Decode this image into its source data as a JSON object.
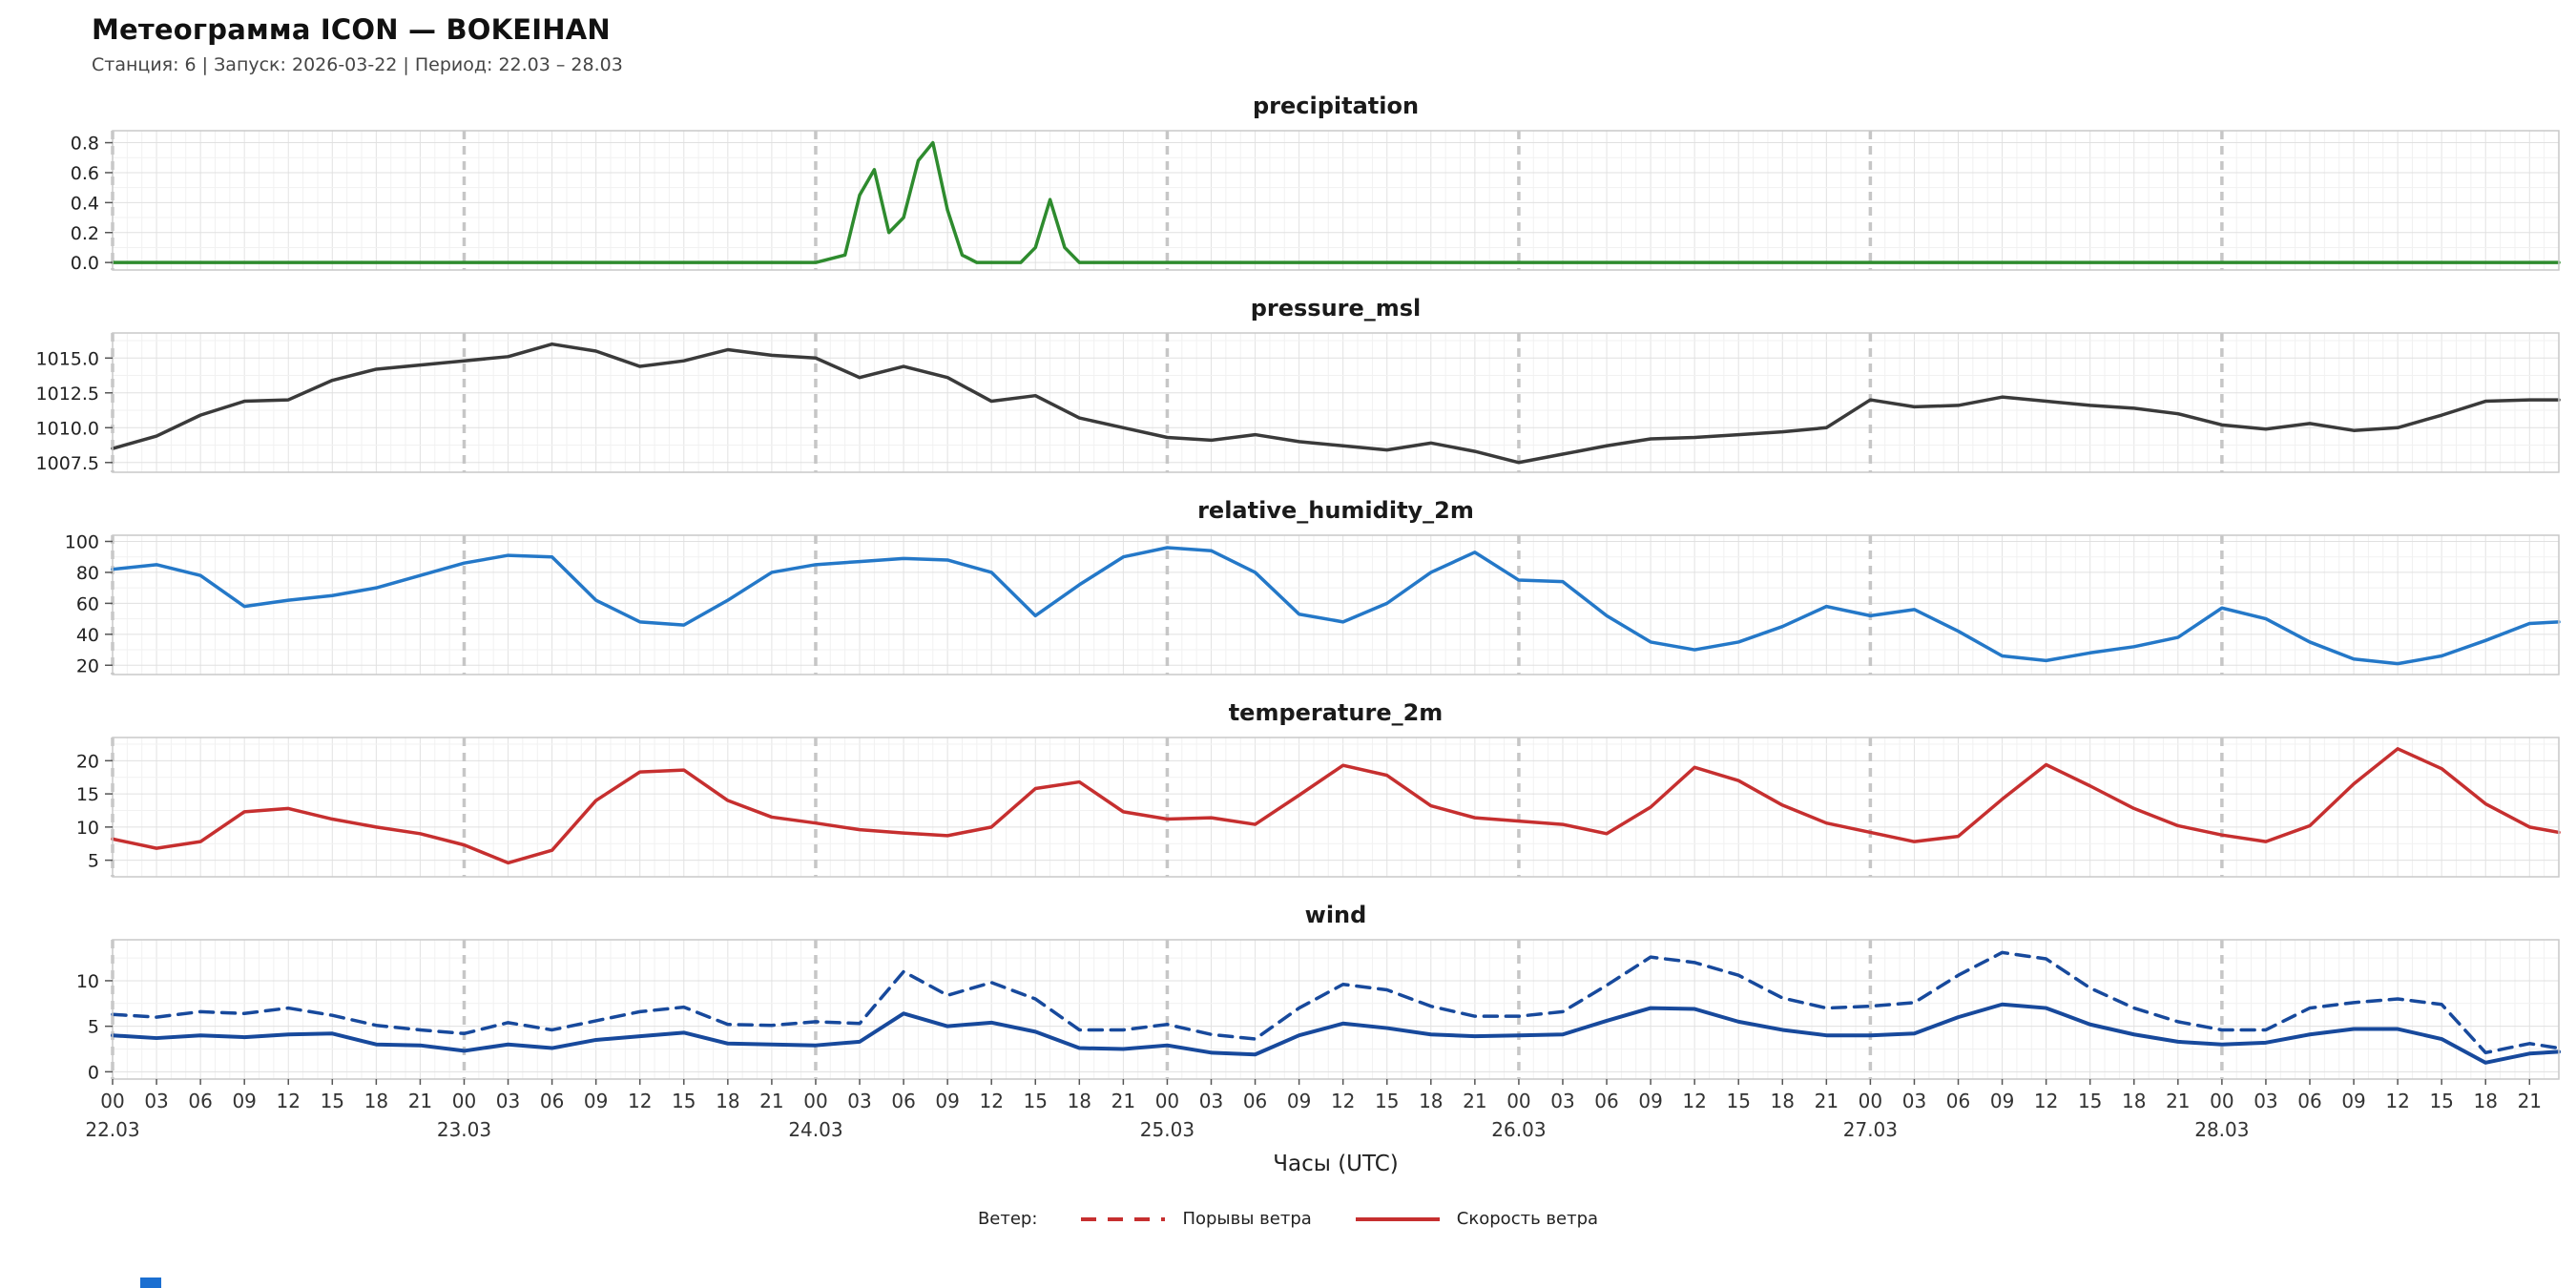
{
  "header": {
    "title": "Метеограмма ICON — BOKEIHAN",
    "subtitle": "Станция: 6 | Запуск: 2026-03-22 | Период: 22.03 – 28.03"
  },
  "x_axis": {
    "xlabel": "Часы (UTC)",
    "hour_labels": [
      "00",
      "03",
      "06",
      "09",
      "12",
      "15",
      "18",
      "21"
    ],
    "day_labels": [
      "22.03",
      "23.03",
      "24.03",
      "25.03",
      "26.03",
      "27.03",
      "28.03"
    ],
    "hour_step": 3,
    "total_hours": 167,
    "x_hours": [
      0,
      3,
      6,
      9,
      12,
      15,
      18,
      21,
      24,
      27,
      30,
      33,
      36,
      39,
      42,
      45,
      48,
      51,
      54,
      57,
      60,
      63,
      66,
      69,
      72,
      75,
      78,
      81,
      84,
      87,
      90,
      93,
      96,
      99,
      102,
      105,
      108,
      111,
      114,
      117,
      120,
      123,
      126,
      129,
      132,
      135,
      138,
      141,
      144,
      147,
      150,
      153,
      156,
      159,
      162,
      165,
      167
    ]
  },
  "chart_data": [
    {
      "type": "line",
      "title": "precipitation",
      "color": "#2e8b2e",
      "ylim": [
        -0.05,
        0.88
      ],
      "yticks": [
        0.0,
        0.2,
        0.4,
        0.6,
        0.8
      ],
      "ytick_labels": [
        "0.0",
        "0.2",
        "0.4",
        "0.6",
        "0.8"
      ],
      "series": [
        {
          "name": "precipitation",
          "style": "solid",
          "x": [
            0,
            48,
            50,
            51,
            52,
            53,
            54,
            55,
            56,
            57,
            58,
            59,
            62,
            63,
            64,
            65,
            66,
            167
          ],
          "y": [
            0,
            0,
            0.05,
            0.45,
            0.62,
            0.2,
            0.3,
            0.68,
            0.8,
            0.35,
            0.05,
            0,
            0,
            0.1,
            0.42,
            0.1,
            0,
            0
          ]
        }
      ]
    },
    {
      "type": "line",
      "title": "pressure_msl",
      "color": "#3a3a3a",
      "ylim": [
        1006.8,
        1016.8
      ],
      "yticks": [
        1007.5,
        1010.0,
        1012.5,
        1015.0
      ],
      "ytick_labels": [
        "1007.5",
        "1010.0",
        "1012.5",
        "1015.0"
      ],
      "series": [
        {
          "name": "pressure_msl",
          "style": "solid",
          "y": [
            1008.5,
            1009.4,
            1010.9,
            1011.9,
            1012.0,
            1013.4,
            1014.2,
            1014.5,
            1014.8,
            1015.1,
            1016.0,
            1015.5,
            1014.4,
            1014.8,
            1015.6,
            1015.2,
            1015.0,
            1013.6,
            1014.4,
            1013.6,
            1011.9,
            1012.3,
            1010.7,
            1010.0,
            1009.3,
            1009.1,
            1009.5,
            1009.0,
            1008.7,
            1008.4,
            1008.9,
            1008.3,
            1007.5,
            1008.1,
            1008.7,
            1009.2,
            1009.3,
            1009.5,
            1009.7,
            1010.0,
            1012.0,
            1011.5,
            1011.6,
            1012.2,
            1011.9,
            1011.6,
            1011.4,
            1011.0,
            1010.2,
            1009.9,
            1010.3,
            1009.8,
            1010.0,
            1010.9,
            1011.9,
            1012.0,
            1012.0
          ]
        }
      ]
    },
    {
      "type": "line",
      "title": "relative_humidity_2m",
      "color": "#2478c8",
      "ylim": [
        14,
        104
      ],
      "yticks": [
        20,
        40,
        60,
        80,
        100
      ],
      "ytick_labels": [
        "20",
        "40",
        "60",
        "80",
        "100"
      ],
      "series": [
        {
          "name": "relative_humidity_2m",
          "style": "solid",
          "y": [
            82,
            85,
            78,
            58,
            62,
            65,
            70,
            78,
            86,
            91,
            90,
            62,
            48,
            46,
            62,
            80,
            85,
            87,
            89,
            88,
            80,
            52,
            72,
            90,
            96,
            94,
            80,
            53,
            48,
            60,
            80,
            93,
            75,
            74,
            52,
            35,
            30,
            35,
            45,
            58,
            52,
            56,
            42,
            26,
            23,
            28,
            32,
            38,
            57,
            50,
            35,
            24,
            21,
            26,
            36,
            47,
            48
          ]
        }
      ]
    },
    {
      "type": "line",
      "title": "temperature_2m",
      "color": "#c62f2f",
      "ylim": [
        2.5,
        23.5
      ],
      "yticks": [
        5,
        10,
        15,
        20
      ],
      "ytick_labels": [
        "5",
        "10",
        "15",
        "20"
      ],
      "series": [
        {
          "name": "temperature_2m",
          "style": "solid",
          "y": [
            8.2,
            6.8,
            7.8,
            12.3,
            12.8,
            11.2,
            10.0,
            9.0,
            7.3,
            4.6,
            6.5,
            14.0,
            18.3,
            18.6,
            14.0,
            11.5,
            10.6,
            9.6,
            9.1,
            8.7,
            10.0,
            15.8,
            16.8,
            12.3,
            11.2,
            11.4,
            10.4,
            14.8,
            19.3,
            17.8,
            13.2,
            11.4,
            10.9,
            10.4,
            9.0,
            13.0,
            19.0,
            17.0,
            13.3,
            10.6,
            9.2,
            7.8,
            8.6,
            14.2,
            19.4,
            16.2,
            12.8,
            10.2,
            8.8,
            7.8,
            10.2,
            16.5,
            21.8,
            18.8,
            13.5,
            10.0,
            9.2
          ]
        }
      ]
    },
    {
      "type": "line",
      "title": "wind",
      "color": "#17499c",
      "ylim": [
        -0.8,
        14.5
      ],
      "yticks": [
        0,
        5,
        10
      ],
      "ytick_labels": [
        "0",
        "5",
        "10"
      ],
      "series": [
        {
          "name": "wind_gusts_10m",
          "style": "dashed",
          "y": [
            6.3,
            6.0,
            6.6,
            6.4,
            7.0,
            6.2,
            5.1,
            4.6,
            4.2,
            5.4,
            4.6,
            5.6,
            6.6,
            7.1,
            5.2,
            5.1,
            5.5,
            5.3,
            11.0,
            8.4,
            9.8,
            8.0,
            4.6,
            4.6,
            5.2,
            4.1,
            3.6,
            7.0,
            9.6,
            9.0,
            7.2,
            6.1,
            6.1,
            6.6,
            9.5,
            12.6,
            12.0,
            10.6,
            8.1,
            7.0,
            7.2,
            7.6,
            10.6,
            13.1,
            12.4,
            9.2,
            7.0,
            5.5,
            4.6,
            4.6,
            7.0,
            7.6,
            8.0,
            7.4,
            2.1,
            3.1,
            2.6
          ]
        },
        {
          "name": "wind_speed_10m",
          "style": "solid",
          "width": 4,
          "y": [
            4.0,
            3.7,
            4.0,
            3.8,
            4.1,
            4.2,
            3.0,
            2.9,
            2.3,
            3.0,
            2.6,
            3.5,
            3.9,
            4.3,
            3.1,
            3.0,
            2.9,
            3.3,
            6.4,
            5.0,
            5.4,
            4.4,
            2.6,
            2.5,
            2.9,
            2.1,
            1.9,
            4.0,
            5.3,
            4.8,
            4.1,
            3.9,
            4.0,
            4.1,
            5.6,
            7.0,
            6.9,
            5.5,
            4.6,
            4.0,
            4.0,
            4.2,
            6.0,
            7.4,
            7.0,
            5.2,
            4.1,
            3.3,
            3.0,
            3.2,
            4.1,
            4.7,
            4.7,
            3.6,
            1.0,
            2.0,
            2.2
          ]
        }
      ]
    }
  ],
  "legend": {
    "prefix": "Ветер:",
    "items": [
      {
        "label": "Порывы ветра",
        "style": "dashed",
        "color": "#c62f2f"
      },
      {
        "label": "Скорость ветра",
        "style": "solid",
        "color": "#c62f2f"
      }
    ]
  },
  "misc": {
    "corner_marker_color": "#1b6fd1"
  }
}
